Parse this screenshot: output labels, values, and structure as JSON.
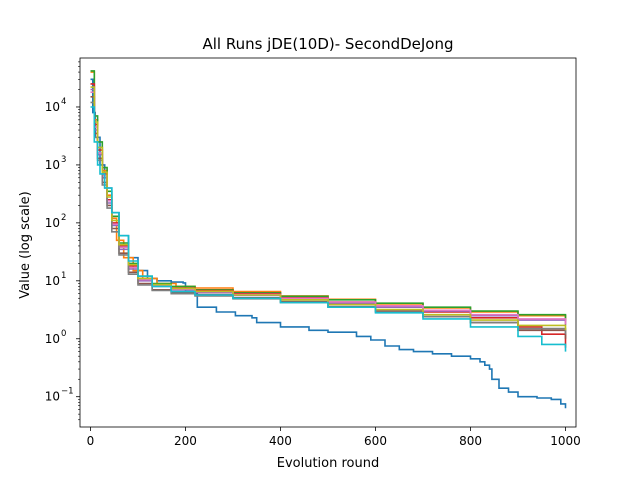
{
  "chart_data": {
    "type": "line",
    "title": "All Runs jDE(10D)- SecondDeJong",
    "xlabel": "Evolution round",
    "ylabel": "Value (log scale)",
    "xlim": [
      -22,
      1022
    ],
    "ylim": [
      0.03,
      70000
    ],
    "yscale": "log",
    "grid": false,
    "legend": "none",
    "xticks": [
      0,
      200,
      400,
      600,
      800,
      1000
    ],
    "xtick_labels": [
      "0",
      "200",
      "400",
      "600",
      "800",
      "1000"
    ],
    "yticks": [
      0.1,
      1,
      10,
      100,
      1000,
      10000
    ],
    "ytick_labels": [
      "10",
      "10",
      "10",
      "10",
      "10",
      "10"
    ],
    "ytick_exps": [
      "−1",
      "0",
      "1",
      "2",
      "3",
      "4"
    ],
    "series": [
      {
        "color": "#1f77b4",
        "points": [
          [
            0,
            30000
          ],
          [
            5,
            8000
          ],
          [
            10,
            3000
          ],
          [
            20,
            1000
          ],
          [
            30,
            400
          ],
          [
            45,
            150
          ],
          [
            60,
            60
          ],
          [
            80,
            25
          ],
          [
            100,
            15
          ],
          [
            120,
            11
          ],
          [
            140,
            10
          ],
          [
            170,
            9.5
          ],
          [
            195,
            9.2
          ],
          [
            200,
            6.5
          ],
          [
            220,
            6
          ],
          [
            225,
            3.5
          ],
          [
            260,
            3.5
          ],
          [
            265,
            2.9
          ],
          [
            300,
            2.9
          ],
          [
            305,
            2.5
          ],
          [
            340,
            2.3
          ],
          [
            350,
            1.9
          ],
          [
            400,
            1.6
          ],
          [
            460,
            1.4
          ],
          [
            500,
            1.3
          ],
          [
            560,
            1.1
          ],
          [
            590,
            0.95
          ],
          [
            620,
            0.75
          ],
          [
            650,
            0.65
          ],
          [
            680,
            0.6
          ],
          [
            720,
            0.55
          ],
          [
            760,
            0.5
          ],
          [
            800,
            0.45
          ],
          [
            820,
            0.4
          ],
          [
            830,
            0.35
          ],
          [
            840,
            0.3
          ],
          [
            845,
            0.2
          ],
          [
            860,
            0.14
          ],
          [
            880,
            0.12
          ],
          [
            900,
            0.1
          ],
          [
            940,
            0.095
          ],
          [
            970,
            0.09
          ],
          [
            990,
            0.075
          ],
          [
            1000,
            0.063
          ]
        ]
      },
      {
        "color": "#ff7f0e",
        "points": [
          [
            0,
            40000
          ],
          [
            8,
            6000
          ],
          [
            15,
            2000
          ],
          [
            25,
            800
          ],
          [
            35,
            300
          ],
          [
            45,
            120
          ],
          [
            55,
            50
          ],
          [
            70,
            25
          ],
          [
            90,
            15
          ],
          [
            110,
            11
          ],
          [
            140,
            9
          ],
          [
            180,
            8
          ],
          [
            220,
            7.5
          ],
          [
            300,
            6.5
          ],
          [
            400,
            5.5
          ],
          [
            500,
            4.8
          ],
          [
            600,
            4
          ],
          [
            700,
            3.4
          ],
          [
            800,
            2.9
          ],
          [
            900,
            2.5
          ],
          [
            1000,
            2.1
          ]
        ]
      },
      {
        "color": "#2ca02c",
        "points": [
          [
            0,
            42000
          ],
          [
            8,
            7000
          ],
          [
            15,
            2500
          ],
          [
            25,
            900
          ],
          [
            35,
            350
          ],
          [
            45,
            130
          ],
          [
            60,
            45
          ],
          [
            80,
            20
          ],
          [
            100,
            12
          ],
          [
            130,
            9
          ],
          [
            170,
            8
          ],
          [
            220,
            7
          ],
          [
            300,
            6.2
          ],
          [
            400,
            5.4
          ],
          [
            500,
            4.7
          ],
          [
            600,
            4.1
          ],
          [
            700,
            3.5
          ],
          [
            800,
            3
          ],
          [
            900,
            2.6
          ],
          [
            1000,
            2
          ]
        ]
      },
      {
        "color": "#d62728",
        "points": [
          [
            0,
            25000
          ],
          [
            8,
            5000
          ],
          [
            15,
            1800
          ],
          [
            25,
            700
          ],
          [
            35,
            250
          ],
          [
            45,
            100
          ],
          [
            60,
            40
          ],
          [
            80,
            18
          ],
          [
            100,
            11
          ],
          [
            130,
            8.5
          ],
          [
            170,
            7.5
          ],
          [
            220,
            6.8
          ],
          [
            300,
            6
          ],
          [
            400,
            5.1
          ],
          [
            500,
            4.3
          ],
          [
            600,
            3.6
          ],
          [
            700,
            2.9
          ],
          [
            800,
            2.3
          ],
          [
            900,
            1.6
          ],
          [
            950,
            1.2
          ],
          [
            1000,
            0.7
          ]
        ]
      },
      {
        "color": "#9467bd",
        "points": [
          [
            0,
            20000
          ],
          [
            8,
            4000
          ],
          [
            15,
            1500
          ],
          [
            25,
            600
          ],
          [
            35,
            220
          ],
          [
            45,
            90
          ],
          [
            60,
            35
          ],
          [
            80,
            16
          ],
          [
            100,
            10
          ],
          [
            130,
            8
          ],
          [
            170,
            7
          ],
          [
            220,
            6.3
          ],
          [
            300,
            5.6
          ],
          [
            400,
            4.8
          ],
          [
            500,
            4.1
          ],
          [
            600,
            3.5
          ],
          [
            700,
            3
          ],
          [
            800,
            2.5
          ],
          [
            900,
            2.1
          ],
          [
            1000,
            1.7
          ]
        ]
      },
      {
        "color": "#8c564b",
        "points": [
          [
            0,
            15000
          ],
          [
            8,
            3500
          ],
          [
            15,
            1300
          ],
          [
            25,
            500
          ],
          [
            35,
            200
          ],
          [
            45,
            80
          ],
          [
            60,
            30
          ],
          [
            80,
            14
          ],
          [
            100,
            9
          ],
          [
            130,
            7
          ],
          [
            170,
            6.3
          ],
          [
            220,
            5.8
          ],
          [
            300,
            5.1
          ],
          [
            400,
            4.4
          ],
          [
            500,
            3.6
          ],
          [
            600,
            3
          ],
          [
            700,
            2.4
          ],
          [
            800,
            1.9
          ],
          [
            900,
            1.4
          ],
          [
            1000,
            1
          ]
        ]
      },
      {
        "color": "#e377c2",
        "points": [
          [
            0,
            18000
          ],
          [
            8,
            4500
          ],
          [
            15,
            1600
          ],
          [
            25,
            650
          ],
          [
            35,
            240
          ],
          [
            45,
            95
          ],
          [
            60,
            38
          ],
          [
            80,
            17
          ],
          [
            100,
            10.5
          ],
          [
            130,
            8.2
          ],
          [
            170,
            7.2
          ],
          [
            220,
            6.5
          ],
          [
            300,
            5.8
          ],
          [
            400,
            5
          ],
          [
            500,
            4.3
          ],
          [
            600,
            3.7
          ],
          [
            700,
            3.1
          ],
          [
            800,
            2.6
          ],
          [
            900,
            2.2
          ],
          [
            1000,
            1.8
          ]
        ]
      },
      {
        "color": "#7f7f7f",
        "points": [
          [
            0,
            12000
          ],
          [
            8,
            3000
          ],
          [
            15,
            1200
          ],
          [
            25,
            450
          ],
          [
            35,
            180
          ],
          [
            45,
            70
          ],
          [
            60,
            28
          ],
          [
            80,
            13
          ],
          [
            100,
            8.5
          ],
          [
            130,
            6.8
          ],
          [
            170,
            6
          ],
          [
            220,
            5.5
          ],
          [
            300,
            4.9
          ],
          [
            400,
            4.2
          ],
          [
            500,
            3.5
          ],
          [
            600,
            2.9
          ],
          [
            700,
            2.4
          ],
          [
            800,
            1.9
          ],
          [
            900,
            1.5
          ],
          [
            1000,
            1.2
          ]
        ]
      },
      {
        "color": "#bcbd22",
        "points": [
          [
            0,
            22000
          ],
          [
            8,
            5500
          ],
          [
            15,
            2000
          ],
          [
            25,
            750
          ],
          [
            35,
            280
          ],
          [
            45,
            110
          ],
          [
            60,
            42
          ],
          [
            80,
            19
          ],
          [
            100,
            11
          ],
          [
            130,
            8.6
          ],
          [
            170,
            7.4
          ],
          [
            220,
            6.6
          ],
          [
            300,
            5.7
          ],
          [
            400,
            4.7
          ],
          [
            500,
            3.9
          ],
          [
            600,
            3.2
          ],
          [
            700,
            2.6
          ],
          [
            800,
            2.1
          ],
          [
            900,
            1.7
          ],
          [
            1000,
            1.4
          ]
        ]
      },
      {
        "color": "#17becf",
        "points": [
          [
            0,
            10000
          ],
          [
            8,
            2500
          ],
          [
            15,
            1000
          ],
          [
            20,
            700
          ],
          [
            30,
            400
          ],
          [
            45,
            150
          ],
          [
            60,
            60
          ],
          [
            80,
            22
          ],
          [
            100,
            12
          ],
          [
            130,
            8
          ],
          [
            170,
            6.5
          ],
          [
            220,
            5.7
          ],
          [
            300,
            5
          ],
          [
            400,
            4.2
          ],
          [
            500,
            3.5
          ],
          [
            600,
            2.8
          ],
          [
            700,
            2.2
          ],
          [
            800,
            1.6
          ],
          [
            900,
            1.1
          ],
          [
            950,
            0.8
          ],
          [
            1000,
            0.6
          ]
        ]
      }
    ]
  }
}
